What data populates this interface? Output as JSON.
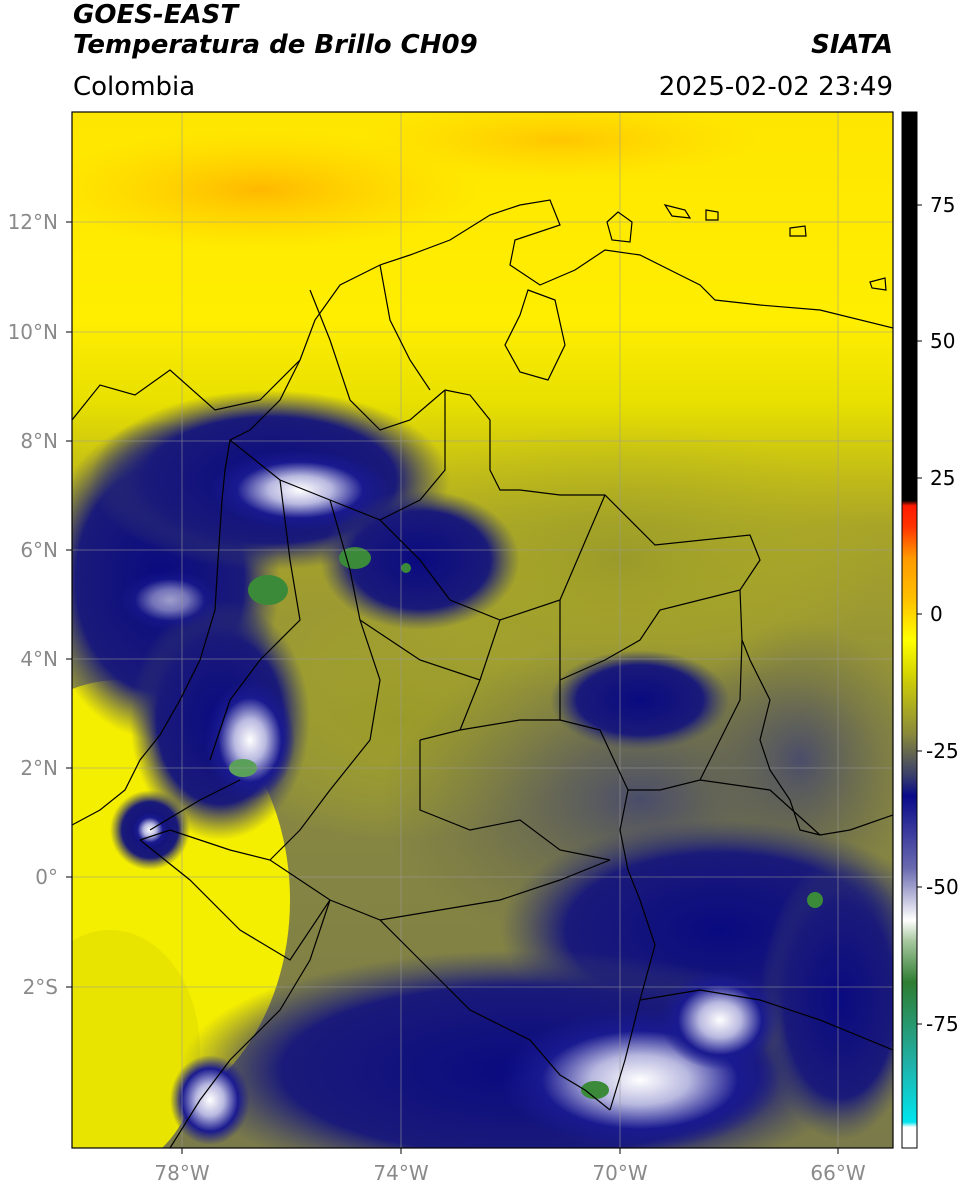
{
  "header": {
    "satellite": "GOES-EAST",
    "product": "Temperatura de Brillo CH09",
    "agency": "SIATA",
    "region": "Colombia",
    "timestamp": "2025-02-02 23:49"
  },
  "map": {
    "lat_ticks": [
      {
        "lat": 12,
        "label": "12°N"
      },
      {
        "lat": 10,
        "label": "10°N"
      },
      {
        "lat": 8,
        "label": "8°N"
      },
      {
        "lat": 6,
        "label": "6°N"
      },
      {
        "lat": 4,
        "label": "4°N"
      },
      {
        "lat": 2,
        "label": "2°N"
      },
      {
        "lat": 0,
        "label": "0°"
      },
      {
        "lat": -2,
        "label": "2°S"
      }
    ],
    "lon_ticks": [
      {
        "lon": -78,
        "label": "78°W"
      },
      {
        "lon": -74,
        "label": "74°W"
      },
      {
        "lon": -70,
        "label": "70°W"
      },
      {
        "lon": -66,
        "label": "66°W"
      }
    ],
    "lon_range": [
      -80,
      -65
    ],
    "lat_range": [
      -5,
      14
    ]
  },
  "colorbar": {
    "ticks": [
      {
        "value": 75,
        "label": "75"
      },
      {
        "value": 50,
        "label": "50"
      },
      {
        "value": 25,
        "label": "25"
      },
      {
        "value": 0,
        "label": "0"
      },
      {
        "value": -25,
        "label": "-25"
      },
      {
        "value": -50,
        "label": "-50"
      },
      {
        "value": -75,
        "label": "-75"
      }
    ],
    "range": [
      -95,
      90
    ],
    "colors": {
      "black": "#000000",
      "red": "#ff1a00",
      "orange": "#ff9900",
      "yellow": "#ffff00",
      "olive": "#8a8a3a",
      "slate": "#3a3f6a",
      "navy": "#0a0a8a",
      "white": "#ffffff",
      "green": "#2e7d32",
      "teal": "#20b2aa",
      "cyan": "#00e5ee"
    }
  }
}
